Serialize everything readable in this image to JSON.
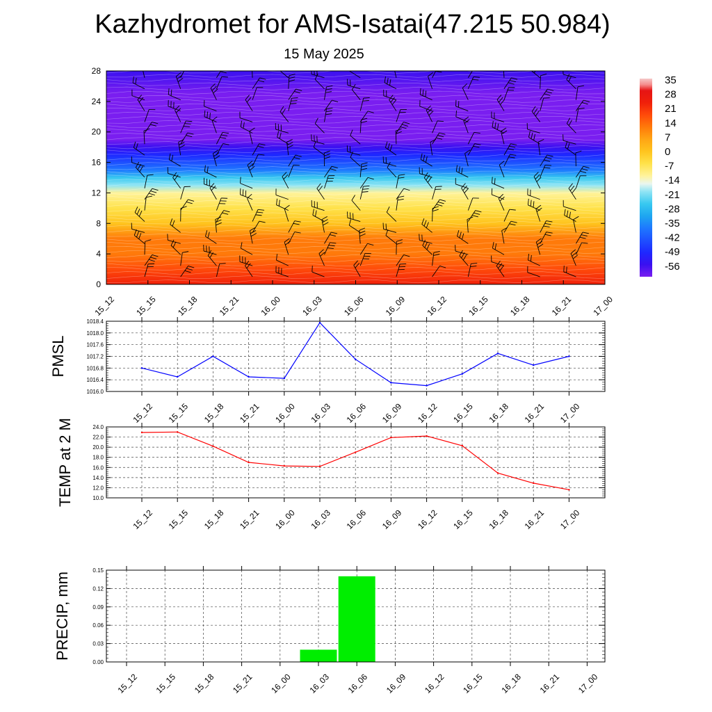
{
  "title": "Kazhydromet for AMS-Isatai(47.215 50.984)",
  "subtitle": "15 May 2025",
  "colors": {
    "pmsl_line": "#0000ff",
    "temp_line": "#ff0000",
    "precip_bar": "#00ee00",
    "grid": "#555555"
  },
  "chart_data": [
    {
      "type": "heatmap",
      "name": "cross-section",
      "x_categories": [
        "15_12",
        "15_15",
        "15_18",
        "15_21",
        "16_00",
        "16_03",
        "16_06",
        "16_09",
        "16_12",
        "16_15",
        "16_18",
        "16_21",
        "17_00"
      ],
      "y_ticks": [
        0,
        4,
        8,
        12,
        16,
        20,
        24,
        28
      ],
      "ylim": [
        0,
        28
      ],
      "layer_values_by_level": [
        {
          "level": 0,
          "value": 30
        },
        {
          "level": 2,
          "value": 25
        },
        {
          "level": 4,
          "value": 20
        },
        {
          "level": 6,
          "value": 15
        },
        {
          "level": 8,
          "value": 8
        },
        {
          "level": 10,
          "value": 2
        },
        {
          "level": 12,
          "value": -5
        },
        {
          "level": 13,
          "value": -14
        },
        {
          "level": 14,
          "value": -22
        },
        {
          "level": 15,
          "value": -30
        },
        {
          "level": 16,
          "value": -38
        },
        {
          "level": 17,
          "value": -45
        },
        {
          "level": 18,
          "value": -52
        },
        {
          "level": 19,
          "value": -58
        },
        {
          "level": 21,
          "value": -56
        },
        {
          "level": 23,
          "value": -60
        },
        {
          "level": 25,
          "value": -55
        },
        {
          "level": 28,
          "value": -50
        }
      ],
      "colorbar": {
        "labels": [
          "35",
          "28",
          "21",
          "14",
          "7",
          "0",
          "-7",
          "-14",
          "-21",
          "-28",
          "-35",
          "-42",
          "-49",
          "-56"
        ],
        "range": [
          -60,
          38
        ]
      },
      "overlay": "wind barbs"
    },
    {
      "type": "line",
      "name": "PMSL",
      "ylabel": "PMSL",
      "categories": [
        "15_12",
        "15_15",
        "15_18",
        "15_21",
        "16_00",
        "16_03",
        "16_06",
        "16_09",
        "16_12",
        "16_15",
        "16_18",
        "16_21",
        "17_00"
      ],
      "values": [
        1016.8,
        1016.5,
        1017.2,
        1016.5,
        1016.45,
        1018.35,
        1017.1,
        1016.3,
        1016.2,
        1016.6,
        1017.3,
        1016.9,
        1017.2
      ],
      "ylim": [
        1016.0,
        1018.4
      ],
      "y_ticks": [
        "1016.0",
        "1016.4",
        "1016.8",
        "1017.2",
        "1017.6",
        "1018.0",
        "1018.4"
      ],
      "grid": true
    },
    {
      "type": "line",
      "name": "TEMP",
      "ylabel": "TEMP at 2 M",
      "categories": [
        "15_12",
        "15_15",
        "15_18",
        "15_21",
        "16_00",
        "16_03",
        "16_06",
        "16_09",
        "16_12",
        "16_15",
        "16_18",
        "16_21",
        "17_00"
      ],
      "values": [
        22.9,
        23.0,
        20.2,
        17.0,
        16.3,
        16.2,
        19.0,
        21.9,
        22.2,
        20.3,
        14.9,
        12.9,
        11.6
      ],
      "ylim": [
        10.0,
        24.0
      ],
      "y_ticks": [
        "10.0",
        "12.0",
        "14.0",
        "16.0",
        "18.0",
        "20.0",
        "22.0",
        "24.0"
      ],
      "grid": true
    },
    {
      "type": "bar",
      "name": "PRECIP",
      "ylabel": "PRECIP, mm",
      "categories": [
        "15_12",
        "15_15",
        "15_18",
        "15_21",
        "16_00",
        "16_03",
        "16_06",
        "16_09",
        "16_12",
        "16_15",
        "16_18",
        "16_21",
        "17_00"
      ],
      "values": [
        0,
        0,
        0,
        0,
        0,
        0.02,
        0.14,
        0,
        0,
        0,
        0,
        0,
        0
      ],
      "ylim": [
        0,
        0.15
      ],
      "y_ticks": [
        "0.00",
        "0.03",
        "0.06",
        "0.09",
        "0.12",
        "0.15"
      ],
      "grid": true
    }
  ]
}
